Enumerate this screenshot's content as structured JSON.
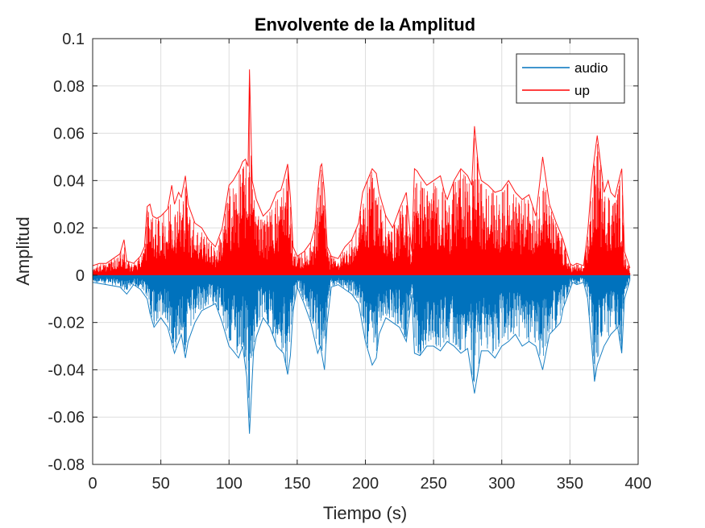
{
  "chart_data": {
    "type": "line",
    "title": "Envolvente de la Amplitud",
    "xlabel": "Tiempo (s)",
    "ylabel": "Amplitud",
    "xlim": [
      0,
      400
    ],
    "ylim": [
      -0.08,
      0.1
    ],
    "xticks": [
      0,
      50,
      100,
      150,
      200,
      250,
      300,
      350,
      400
    ],
    "xtick_labels": [
      "0",
      "50",
      "100",
      "150",
      "200",
      "250",
      "300",
      "350",
      "400"
    ],
    "yticks": [
      -0.08,
      -0.06,
      -0.04,
      -0.02,
      0,
      0.02,
      0.04,
      0.06,
      0.08,
      0.1
    ],
    "ytick_labels": [
      "-0.08",
      "-0.06",
      "-0.04",
      "-0.02",
      "0",
      "0.02",
      "0.04",
      "0.06",
      "0.08",
      "0.1"
    ],
    "grid": true,
    "legend_position": "top-right",
    "data_end_x": 394,
    "series": [
      {
        "name": "audio",
        "color": "#0072BD",
        "kind": "signal",
        "envelope_x": [
          0,
          10,
          20,
          25,
          30,
          35,
          40,
          42,
          45,
          50,
          55,
          60,
          65,
          68,
          70,
          75,
          80,
          90,
          95,
          100,
          103,
          107,
          110,
          113,
          115,
          118,
          120,
          125,
          130,
          135,
          140,
          143,
          145,
          147,
          150,
          155,
          160,
          165,
          167,
          170,
          172,
          175,
          180,
          190,
          195,
          200,
          205,
          208,
          210,
          215,
          220,
          225,
          230,
          234,
          236,
          240,
          245,
          250,
          255,
          260,
          265,
          270,
          275,
          280,
          285,
          290,
          295,
          300,
          305,
          310,
          315,
          320,
          325,
          330,
          335,
          340,
          343,
          345,
          350,
          352,
          355,
          360,
          363,
          366,
          368,
          370,
          375,
          380,
          385,
          388,
          390,
          394
        ],
        "envelope_y": [
          -0.003,
          -0.004,
          -0.005,
          -0.008,
          -0.004,
          -0.006,
          -0.01,
          -0.016,
          -0.022,
          -0.018,
          -0.022,
          -0.033,
          -0.025,
          -0.035,
          -0.028,
          -0.02,
          -0.015,
          -0.012,
          -0.02,
          -0.03,
          -0.032,
          -0.035,
          -0.03,
          -0.043,
          -0.067,
          -0.032,
          -0.026,
          -0.018,
          -0.022,
          -0.03,
          -0.033,
          -0.042,
          -0.034,
          -0.015,
          -0.005,
          -0.012,
          -0.02,
          -0.033,
          -0.03,
          -0.04,
          -0.02,
          -0.005,
          -0.004,
          -0.008,
          -0.012,
          -0.028,
          -0.038,
          -0.035,
          -0.025,
          -0.018,
          -0.02,
          -0.022,
          -0.028,
          -0.008,
          -0.033,
          -0.034,
          -0.03,
          -0.03,
          -0.032,
          -0.028,
          -0.03,
          -0.033,
          -0.031,
          -0.05,
          -0.032,
          -0.032,
          -0.035,
          -0.03,
          -0.028,
          -0.025,
          -0.03,
          -0.028,
          -0.03,
          -0.04,
          -0.025,
          -0.022,
          -0.02,
          -0.014,
          -0.006,
          -0.003,
          -0.004,
          -0.003,
          -0.01,
          -0.03,
          -0.045,
          -0.038,
          -0.03,
          -0.025,
          -0.022,
          -0.033,
          -0.01,
          -0.002
        ]
      },
      {
        "name": "up",
        "color": "#FF0000",
        "kind": "envelope",
        "envelope_x": [
          0,
          5,
          10,
          15,
          20,
          23,
          25,
          30,
          35,
          38,
          40,
          42,
          44,
          47,
          50,
          55,
          58,
          60,
          63,
          65,
          68,
          70,
          75,
          80,
          85,
          90,
          95,
          100,
          103,
          105,
          108,
          110,
          112,
          114,
          115,
          117,
          120,
          125,
          130,
          135,
          138,
          140,
          143,
          145,
          147,
          150,
          155,
          160,
          163,
          165,
          167,
          168,
          170,
          172,
          175,
          180,
          185,
          190,
          195,
          198,
          200,
          205,
          208,
          210,
          215,
          220,
          225,
          230,
          234,
          236,
          238,
          240,
          245,
          250,
          255,
          258,
          260,
          265,
          270,
          275,
          278,
          280,
          283,
          285,
          290,
          295,
          300,
          305,
          310,
          315,
          320,
          325,
          327,
          330,
          335,
          340,
          343,
          345,
          350,
          352,
          355,
          360,
          363,
          366,
          368,
          370,
          373,
          375,
          378,
          380,
          383,
          385,
          388,
          390,
          394
        ],
        "envelope_y": [
          0.004,
          0.005,
          0.005,
          0.007,
          0.009,
          0.015,
          0.006,
          0.005,
          0.008,
          0.012,
          0.029,
          0.03,
          0.025,
          0.024,
          0.025,
          0.028,
          0.038,
          0.03,
          0.035,
          0.033,
          0.042,
          0.03,
          0.022,
          0.02,
          0.015,
          0.012,
          0.02,
          0.038,
          0.04,
          0.042,
          0.045,
          0.048,
          0.049,
          0.046,
          0.087,
          0.04,
          0.032,
          0.025,
          0.028,
          0.035,
          0.036,
          0.04,
          0.047,
          0.033,
          0.012,
          0.008,
          0.01,
          0.014,
          0.02,
          0.035,
          0.046,
          0.047,
          0.035,
          0.012,
          0.008,
          0.007,
          0.012,
          0.015,
          0.022,
          0.035,
          0.038,
          0.045,
          0.043,
          0.035,
          0.025,
          0.02,
          0.028,
          0.035,
          0.01,
          0.045,
          0.044,
          0.042,
          0.038,
          0.04,
          0.042,
          0.035,
          0.032,
          0.04,
          0.045,
          0.042,
          0.038,
          0.063,
          0.045,
          0.04,
          0.038,
          0.035,
          0.036,
          0.04,
          0.035,
          0.032,
          0.034,
          0.025,
          0.035,
          0.05,
          0.03,
          0.022,
          0.018,
          0.015,
          0.005,
          0.004,
          0.005,
          0.004,
          0.018,
          0.04,
          0.05,
          0.059,
          0.045,
          0.035,
          0.04,
          0.035,
          0.033,
          0.038,
          0.045,
          0.01,
          0.003
        ]
      }
    ]
  }
}
